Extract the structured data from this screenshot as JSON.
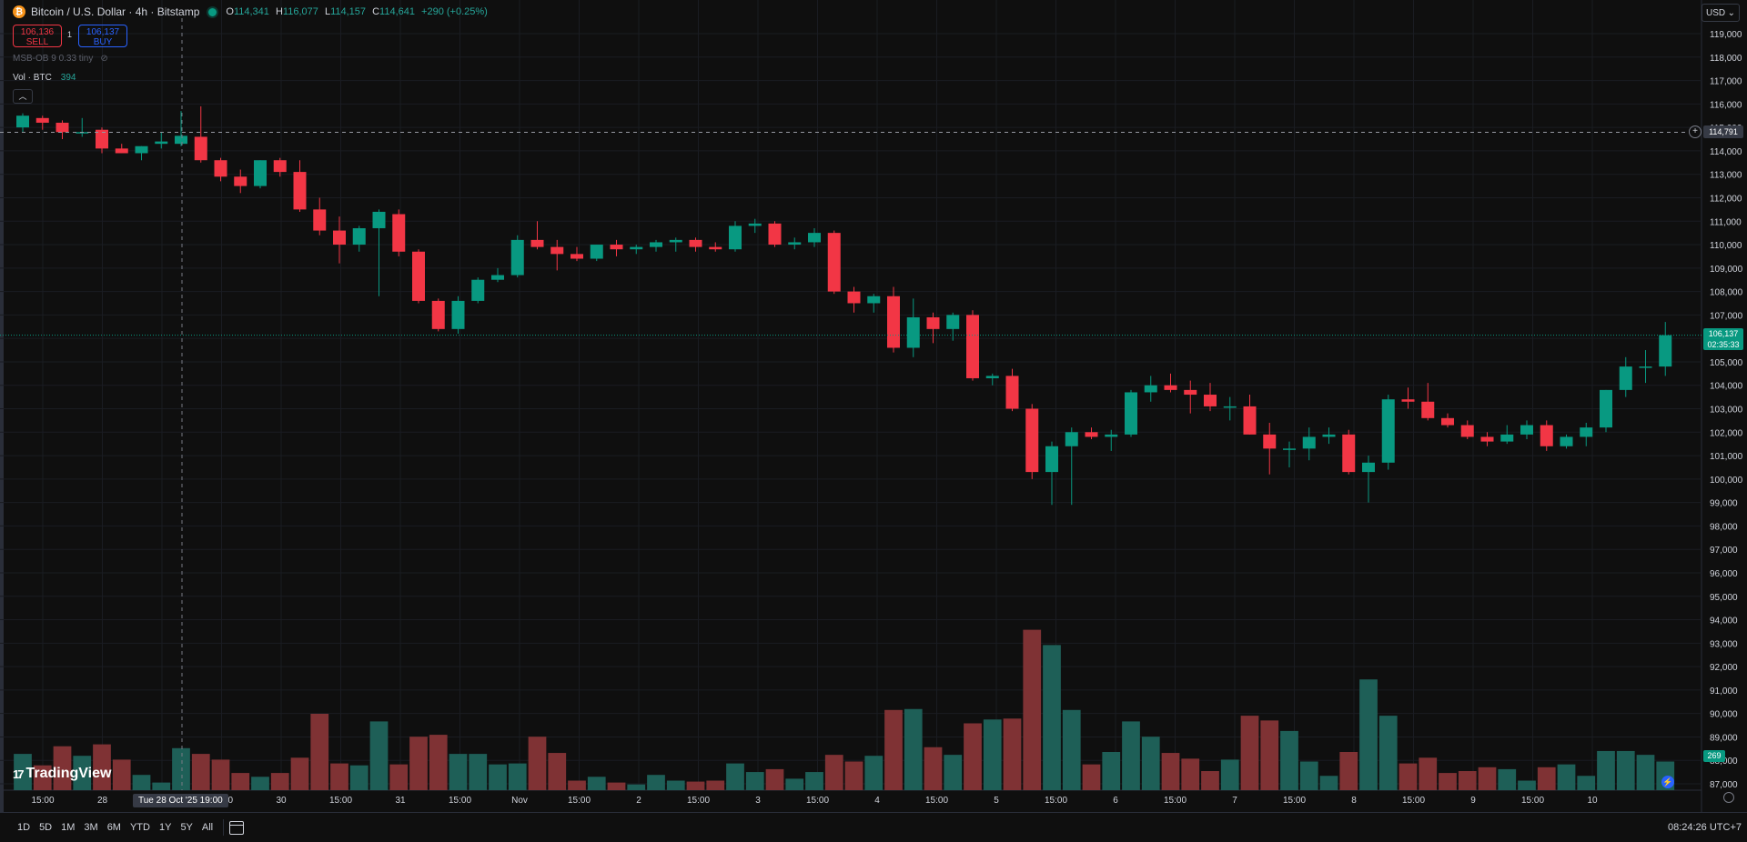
{
  "header": {
    "coin_badge": "₿",
    "symbol_title": "Bitcoin / U.S. Dollar · 4h · Bitstamp",
    "ohlc": {
      "o_label": "O",
      "o": "114,341",
      "h_label": "H",
      "h": "116,077",
      "l_label": "L",
      "l": "114,157",
      "c_label": "C",
      "c": "114,641",
      "change": "+290 (+0.25%)"
    }
  },
  "trade": {
    "sell_price": "106,136",
    "sell_label": "SELL",
    "spread": "1",
    "buy_price": "106,137",
    "buy_label": "BUY"
  },
  "indicator": {
    "label": "MSB-OB 9 0.33 tiny"
  },
  "volume_legend": {
    "label": "Vol · BTC",
    "value": "394"
  },
  "currency": {
    "label": "USD"
  },
  "price_axis": {
    "labels": [
      "119,000",
      "118,000",
      "117,000",
      "116,000",
      "115,000",
      "114,000",
      "113,000",
      "112,000",
      "111,000",
      "110,000",
      "109,000",
      "108,000",
      "107,000",
      "106,000",
      "105,000",
      "104,000",
      "103,000",
      "102,000",
      "101,000",
      "100,000",
      "99,000",
      "98,000",
      "97,000",
      "96,000",
      "95,000",
      "94,000",
      "93,000",
      "92,000",
      "91,000",
      "90,000",
      "89,000",
      "88,000",
      "87,000"
    ],
    "crosshair_price": "114,791",
    "last_price": "106,137",
    "countdown": "02:35:33",
    "volume_tag": "269"
  },
  "time_axis": {
    "labels": [
      "15:00",
      "28",
      "",
      "15:00",
      "30",
      "15:00",
      "31",
      "15:00",
      "Nov",
      "15:00",
      "2",
      "15:00",
      "3",
      "15:00",
      "4",
      "15:00",
      "5",
      "15:00",
      "6",
      "15:00",
      "7",
      "15:00",
      "8",
      "15:00",
      "9",
      "15:00",
      "10"
    ],
    "crosshair_date": "Tue 28 Oct '25   19:00"
  },
  "bottom_bar": {
    "timeframes": [
      "1D",
      "5D",
      "1M",
      "3M",
      "6M",
      "YTD",
      "1Y",
      "5Y",
      "All"
    ],
    "clock": "08:24:26 UTC+7"
  },
  "brand": {
    "logo_text": "TradingView",
    "logo_mark": "17"
  },
  "colors": {
    "up": "#089981",
    "down": "#f23645",
    "vol_up": "#1e5f57",
    "vol_down": "#7f3234",
    "background": "#0f0f0f"
  },
  "chart_data": {
    "type": "candlestick",
    "title": "Bitcoin / U.S. Dollar · 4h · Bitstamp",
    "price_range": [
      87000,
      119000
    ],
    "candles": [
      {
        "o": 115000,
        "h": 115600,
        "l": 114800,
        "c": 115500,
        "v": 190
      },
      {
        "o": 115400,
        "h": 115500,
        "l": 114900,
        "c": 115200,
        "v": 130
      },
      {
        "o": 115200,
        "h": 115300,
        "l": 114500,
        "c": 114800,
        "v": 230
      },
      {
        "o": 114800,
        "h": 115400,
        "l": 114600,
        "c": 114800,
        "v": 180
      },
      {
        "o": 114900,
        "h": 115000,
        "l": 113900,
        "c": 114100,
        "v": 240
      },
      {
        "o": 114100,
        "h": 114300,
        "l": 113900,
        "c": 113900,
        "v": 160
      },
      {
        "o": 113900,
        "h": 114200,
        "l": 113600,
        "c": 114200,
        "v": 80
      },
      {
        "o": 114300,
        "h": 114800,
        "l": 114100,
        "c": 114400,
        "v": 40
      },
      {
        "o": 114300,
        "h": 115700,
        "l": 114200,
        "c": 114641,
        "v": 220
      },
      {
        "o": 114600,
        "h": 115900,
        "l": 113500,
        "c": 113600,
        "v": 190
      },
      {
        "o": 113600,
        "h": 113700,
        "l": 112700,
        "c": 112900,
        "v": 160
      },
      {
        "o": 112900,
        "h": 113200,
        "l": 112200,
        "c": 112500,
        "v": 90
      },
      {
        "o": 112500,
        "h": 113600,
        "l": 112400,
        "c": 113600,
        "v": 70
      },
      {
        "o": 113600,
        "h": 113700,
        "l": 112900,
        "c": 113100,
        "v": 90
      },
      {
        "o": 113100,
        "h": 113600,
        "l": 111400,
        "c": 111500,
        "v": 170
      },
      {
        "o": 111500,
        "h": 112000,
        "l": 110400,
        "c": 110600,
        "v": 400
      },
      {
        "o": 110600,
        "h": 111200,
        "l": 109200,
        "c": 110000,
        "v": 140
      },
      {
        "o": 110000,
        "h": 110800,
        "l": 109700,
        "c": 110700,
        "v": 130
      },
      {
        "o": 110700,
        "h": 111500,
        "l": 107800,
        "c": 111400,
        "v": 360
      },
      {
        "o": 111300,
        "h": 111500,
        "l": 109500,
        "c": 109700,
        "v": 135
      },
      {
        "o": 109700,
        "h": 109800,
        "l": 107500,
        "c": 107600,
        "v": 280
      },
      {
        "o": 107600,
        "h": 107700,
        "l": 106300,
        "c": 106400,
        "v": 290
      },
      {
        "o": 106400,
        "h": 107800,
        "l": 106200,
        "c": 107600,
        "v": 190
      },
      {
        "o": 107600,
        "h": 108600,
        "l": 107500,
        "c": 108500,
        "v": 190
      },
      {
        "o": 108500,
        "h": 109000,
        "l": 108400,
        "c": 108700,
        "v": 135
      },
      {
        "o": 108700,
        "h": 110400,
        "l": 108600,
        "c": 110200,
        "v": 140
      },
      {
        "o": 110200,
        "h": 111000,
        "l": 109800,
        "c": 109900,
        "v": 280
      },
      {
        "o": 109900,
        "h": 110200,
        "l": 108900,
        "c": 109600,
        "v": 195
      },
      {
        "o": 109600,
        "h": 109900,
        "l": 109300,
        "c": 109400,
        "v": 50
      },
      {
        "o": 109400,
        "h": 110000,
        "l": 109300,
        "c": 110000,
        "v": 70
      },
      {
        "o": 110000,
        "h": 110200,
        "l": 109500,
        "c": 109800,
        "v": 40
      },
      {
        "o": 109800,
        "h": 110000,
        "l": 109600,
        "c": 109900,
        "v": 30
      },
      {
        "o": 109900,
        "h": 110200,
        "l": 109700,
        "c": 110100,
        "v": 80
      },
      {
        "o": 110100,
        "h": 110300,
        "l": 109700,
        "c": 110200,
        "v": 50
      },
      {
        "o": 110200,
        "h": 110300,
        "l": 109700,
        "c": 109900,
        "v": 45
      },
      {
        "o": 109900,
        "h": 110100,
        "l": 109700,
        "c": 109800,
        "v": 50
      },
      {
        "o": 109800,
        "h": 111000,
        "l": 109700,
        "c": 110800,
        "v": 140
      },
      {
        "o": 110800,
        "h": 111100,
        "l": 110500,
        "c": 110900,
        "v": 95
      },
      {
        "o": 110900,
        "h": 111000,
        "l": 109900,
        "c": 110000,
        "v": 110
      },
      {
        "o": 110000,
        "h": 110300,
        "l": 109800,
        "c": 110100,
        "v": 60
      },
      {
        "o": 110100,
        "h": 110700,
        "l": 109900,
        "c": 110500,
        "v": 95
      },
      {
        "o": 110500,
        "h": 110600,
        "l": 107900,
        "c": 108000,
        "v": 185
      },
      {
        "o": 108000,
        "h": 108200,
        "l": 107100,
        "c": 107500,
        "v": 150
      },
      {
        "o": 107500,
        "h": 107900,
        "l": 107100,
        "c": 107800,
        "v": 180
      },
      {
        "o": 107800,
        "h": 108200,
        "l": 105400,
        "c": 105600,
        "v": 420
      },
      {
        "o": 105600,
        "h": 107700,
        "l": 105200,
        "c": 106900,
        "v": 425
      },
      {
        "o": 106900,
        "h": 107100,
        "l": 105800,
        "c": 106400,
        "v": 225
      },
      {
        "o": 106400,
        "h": 107100,
        "l": 105900,
        "c": 107000,
        "v": 185
      },
      {
        "o": 107000,
        "h": 107200,
        "l": 104200,
        "c": 104300,
        "v": 350
      },
      {
        "o": 104300,
        "h": 104500,
        "l": 104000,
        "c": 104400,
        "v": 370
      },
      {
        "o": 104400,
        "h": 104700,
        "l": 102900,
        "c": 103000,
        "v": 375
      },
      {
        "o": 103000,
        "h": 103200,
        "l": 100000,
        "c": 100300,
        "v": 840
      },
      {
        "o": 100300,
        "h": 101600,
        "l": 98900,
        "c": 101400,
        "v": 760
      },
      {
        "o": 101400,
        "h": 102200,
        "l": 98900,
        "c": 102000,
        "v": 420
      },
      {
        "o": 102000,
        "h": 102200,
        "l": 101700,
        "c": 101800,
        "v": 135
      },
      {
        "o": 101800,
        "h": 102100,
        "l": 101200,
        "c": 101900,
        "v": 200
      },
      {
        "o": 101900,
        "h": 103800,
        "l": 101800,
        "c": 103700,
        "v": 360
      },
      {
        "o": 103700,
        "h": 104400,
        "l": 103300,
        "c": 104000,
        "v": 280
      },
      {
        "o": 104000,
        "h": 104500,
        "l": 103700,
        "c": 103800,
        "v": 195
      },
      {
        "o": 103800,
        "h": 104200,
        "l": 102800,
        "c": 103600,
        "v": 165
      },
      {
        "o": 103600,
        "h": 104100,
        "l": 102900,
        "c": 103100,
        "v": 100
      },
      {
        "o": 103100,
        "h": 103500,
        "l": 102500,
        "c": 103100,
        "v": 160
      },
      {
        "o": 103100,
        "h": 103600,
        "l": 101900,
        "c": 101900,
        "v": 390
      },
      {
        "o": 101900,
        "h": 102400,
        "l": 100200,
        "c": 101300,
        "v": 365
      },
      {
        "o": 101300,
        "h": 101600,
        "l": 100500,
        "c": 101300,
        "v": 310
      },
      {
        "o": 101300,
        "h": 102200,
        "l": 100800,
        "c": 101800,
        "v": 150
      },
      {
        "o": 101800,
        "h": 102200,
        "l": 101500,
        "c": 101900,
        "v": 75
      },
      {
        "o": 101900,
        "h": 102100,
        "l": 100200,
        "c": 100300,
        "v": 200
      },
      {
        "o": 100300,
        "h": 101000,
        "l": 99000,
        "c": 100700,
        "v": 580
      },
      {
        "o": 100700,
        "h": 103600,
        "l": 100400,
        "c": 103400,
        "v": 390
      },
      {
        "o": 103400,
        "h": 103900,
        "l": 103000,
        "c": 103300,
        "v": 140
      },
      {
        "o": 103300,
        "h": 104100,
        "l": 102500,
        "c": 102600,
        "v": 170
      },
      {
        "o": 102600,
        "h": 102800,
        "l": 102200,
        "c": 102300,
        "v": 90
      },
      {
        "o": 102300,
        "h": 102500,
        "l": 101700,
        "c": 101800,
        "v": 100
      },
      {
        "o": 101800,
        "h": 102000,
        "l": 101400,
        "c": 101600,
        "v": 120
      },
      {
        "o": 101600,
        "h": 102300,
        "l": 101500,
        "c": 101900,
        "v": 110
      },
      {
        "o": 101900,
        "h": 102500,
        "l": 101700,
        "c": 102300,
        "v": 50
      },
      {
        "o": 102300,
        "h": 102500,
        "l": 101200,
        "c": 101400,
        "v": 120
      },
      {
        "o": 101400,
        "h": 101900,
        "l": 101300,
        "c": 101800,
        "v": 135
      },
      {
        "o": 101800,
        "h": 102400,
        "l": 101400,
        "c": 102200,
        "v": 75
      },
      {
        "o": 102200,
        "h": 103800,
        "l": 102000,
        "c": 103800,
        "v": 205
      },
      {
        "o": 103800,
        "h": 105200,
        "l": 103500,
        "c": 104800,
        "v": 205
      },
      {
        "o": 104800,
        "h": 105500,
        "l": 104100,
        "c": 104800,
        "v": 185
      },
      {
        "o": 104800,
        "h": 106700,
        "l": 104400,
        "c": 106137,
        "v": 150
      }
    ]
  }
}
